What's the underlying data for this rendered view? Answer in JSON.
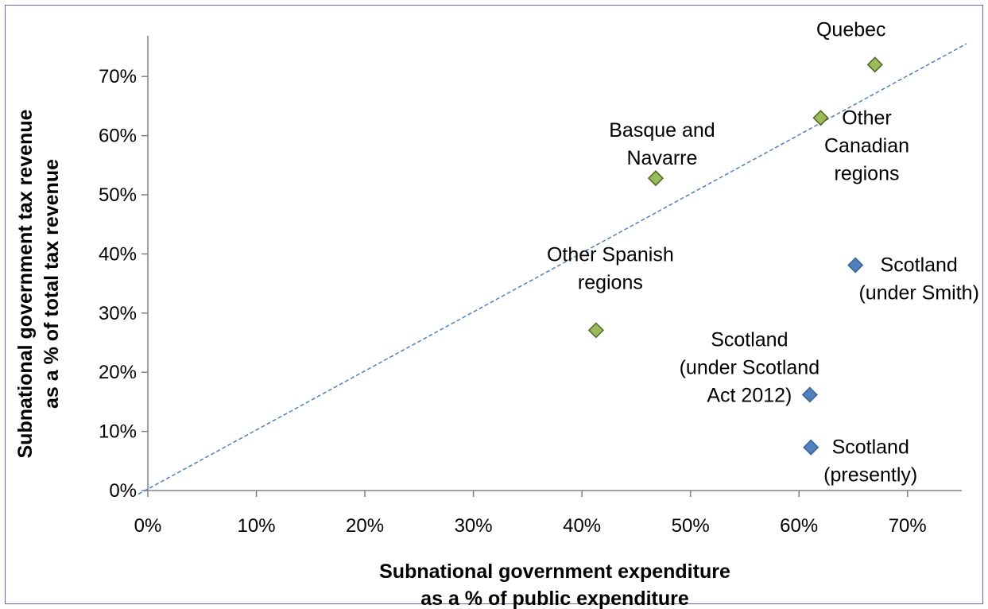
{
  "chart_data": {
    "type": "scatter",
    "title": "",
    "xlabel_lines": [
      "Subnational government expenditure",
      "as a % of public expenditure"
    ],
    "ylabel_lines": [
      "Subnational government tax revenue",
      "as a % of total tax revenue"
    ],
    "xlim": [
      0,
      75
    ],
    "ylim": [
      0,
      75
    ],
    "x_ticks": [
      "0%",
      "10%",
      "20%",
      "30%",
      "40%",
      "50%",
      "60%",
      "70%"
    ],
    "y_ticks": [
      "0%",
      "10%",
      "20%",
      "30%",
      "40%",
      "50%",
      "60%",
      "70%"
    ],
    "grid": false,
    "legend": "none",
    "colors": {
      "green": "#9bbb59",
      "blue": "#4f81bd",
      "trendline": "#4f81bd",
      "frame": "#7a5ea8"
    },
    "trendline": {
      "style": "dashed",
      "x": [
        0,
        75
      ],
      "y": [
        1,
        75
      ]
    },
    "points": [
      {
        "label_lines": [
          "Quebec"
        ],
        "x": 67,
        "y": 72,
        "color": "green"
      },
      {
        "label_lines": [
          "Other",
          "Canadian",
          "regions"
        ],
        "x": 62,
        "y": 63,
        "color": "green"
      },
      {
        "label_lines": [
          "Basque and",
          "Navarre"
        ],
        "x": 46.8,
        "y": 52.8,
        "color": "green"
      },
      {
        "label_lines": [
          "Other Spanish",
          "regions"
        ],
        "x": 41.3,
        "y": 27.1,
        "color": "green"
      },
      {
        "label_lines": [
          "Scotland",
          "(under Smith)"
        ],
        "x": 65.2,
        "y": 38.1,
        "color": "blue"
      },
      {
        "label_lines": [
          "Scotland",
          "(under Scotland",
          "Act 2012)"
        ],
        "x": 61,
        "y": 16.2,
        "color": "blue"
      },
      {
        "label_lines": [
          "Scotland",
          "(presently)"
        ],
        "x": 61.1,
        "y": 7.3,
        "color": "blue"
      }
    ]
  }
}
